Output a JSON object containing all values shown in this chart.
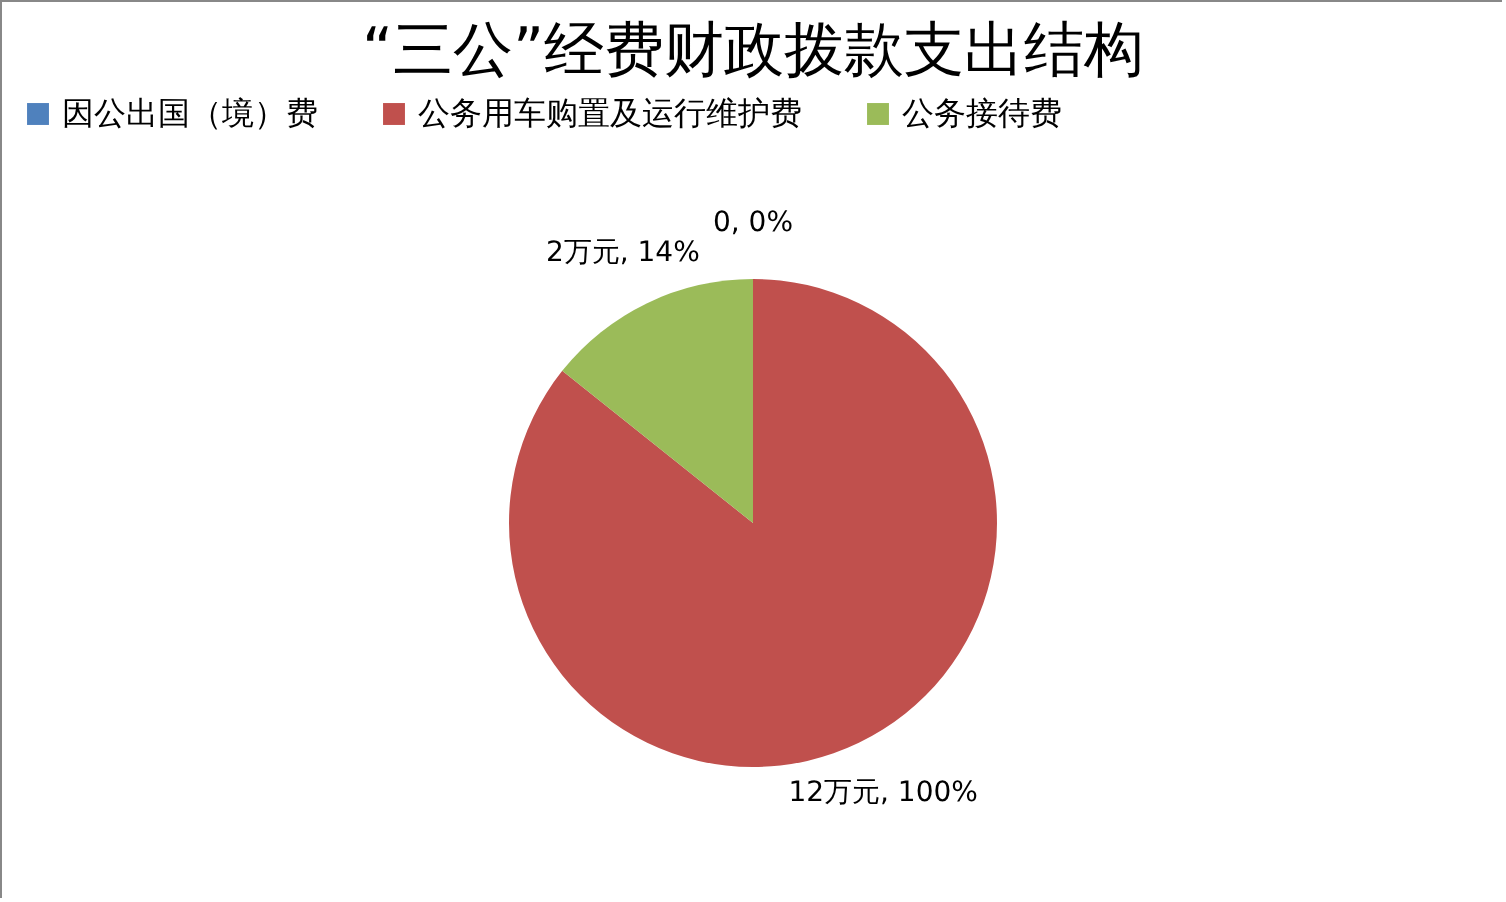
{
  "chart_data": {
    "type": "pie",
    "title": "“三公”经费财政拨款支出结构",
    "categories": [
      "因公出国（境）费",
      "公务用车购置及运行维护费",
      "公务接待费"
    ],
    "values": [
      0,
      12,
      2
    ],
    "colors": [
      "#4f81bd",
      "#c0504d",
      "#9bbb59"
    ],
    "value_labels": [
      "0, 0%",
      "12万元, 100%",
      "2万元, 14%"
    ],
    "legend": "top"
  }
}
